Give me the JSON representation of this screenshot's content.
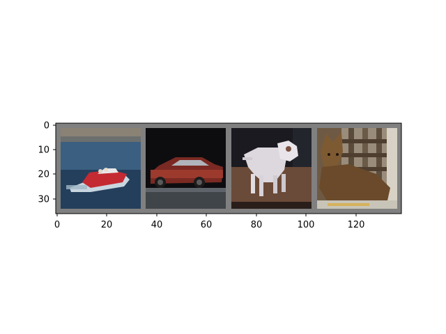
{
  "figure": {
    "background": "#ffffff",
    "grid_frame_color": "#7f7f7f",
    "y_ticks": [
      "0",
      "10",
      "20",
      "30"
    ],
    "x_ticks": [
      "0",
      "20",
      "40",
      "60",
      "80",
      "100",
      "120"
    ],
    "tiles": [
      {
        "subject": "boat"
      },
      {
        "subject": "car"
      },
      {
        "subject": "dog"
      },
      {
        "subject": "cat"
      }
    ]
  }
}
